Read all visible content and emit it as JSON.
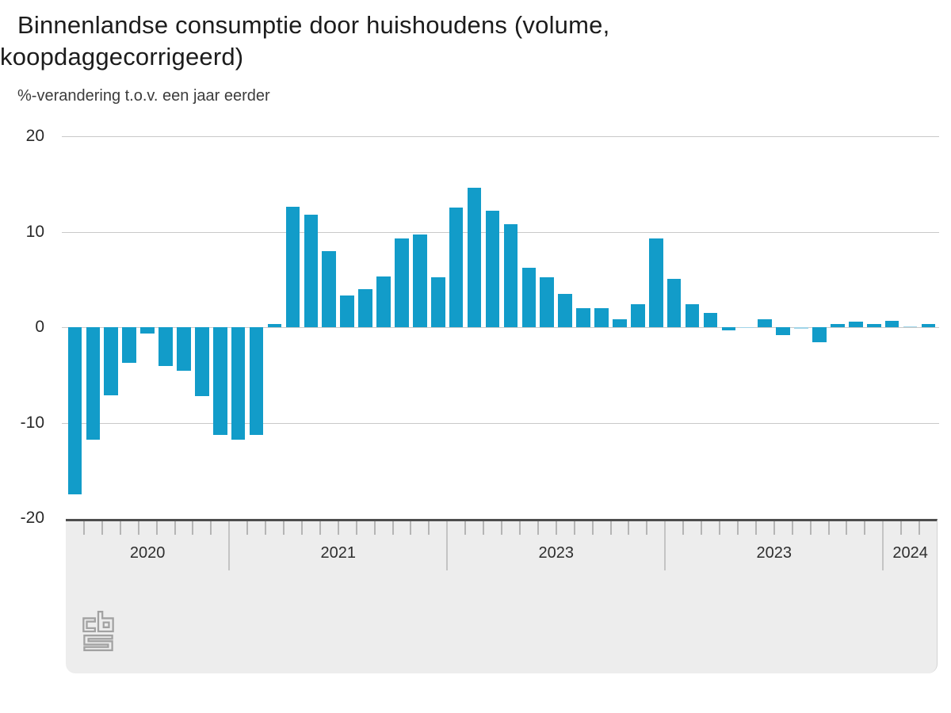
{
  "header": {
    "title": "Binnenlandse consumptie door huishoudens (volume, koopdaggecorrigeerd)",
    "subtitle": "%-verandering t.o.v. een jaar eerder"
  },
  "branding": {
    "logo": "cbs-logo"
  },
  "colors": {
    "bar": "#129cc9",
    "bar_tiny": "#9fd4e8",
    "gridline": "#c9c9c9",
    "band_bg": "#ededed",
    "band_border": "#4e4e4e",
    "month_tick": "#b5b5b5",
    "year_separator": "#c4c4c4"
  },
  "chart_data": {
    "type": "bar",
    "title": "Binnenlandse consumptie door huishoudens (volume, koopdaggecorrigeerd)",
    "ylabel": "%-verandering t.o.v. een jaar eerder",
    "xlabel": "",
    "unit": "%",
    "ylim": [
      -20,
      20
    ],
    "yticks": [
      20,
      10,
      0,
      -10,
      -20
    ],
    "grid": true,
    "legend": "none",
    "note": "monthly bars grouped per axis year label as printed on the axis",
    "year_groups": [
      {
        "label": "2020",
        "values": [
          -17.5,
          -11.8,
          -7.1,
          -3.7,
          -0.7,
          -4.1,
          -4.6,
          -7.2,
          -11.3
        ]
      },
      {
        "label": "2021",
        "values": [
          -11.8,
          -11.3,
          0.3,
          12.6,
          11.8,
          8.0,
          3.3,
          4.0,
          5.3,
          9.3,
          9.7,
          5.2
        ]
      },
      {
        "label": "2023",
        "values": [
          12.5,
          14.6,
          12.2,
          10.8,
          6.2,
          5.2,
          3.5,
          2.0,
          2.0,
          0.8,
          2.4,
          9.3
        ]
      },
      {
        "label": "2023",
        "values": [
          5.1,
          2.4,
          1.5,
          -0.3,
          -0.1,
          0.8,
          -0.8,
          -0.2,
          -1.6,
          0.3,
          0.6,
          0.3
        ]
      },
      {
        "label": "2024",
        "values": [
          0.7,
          0.1,
          0.3
        ]
      }
    ]
  }
}
